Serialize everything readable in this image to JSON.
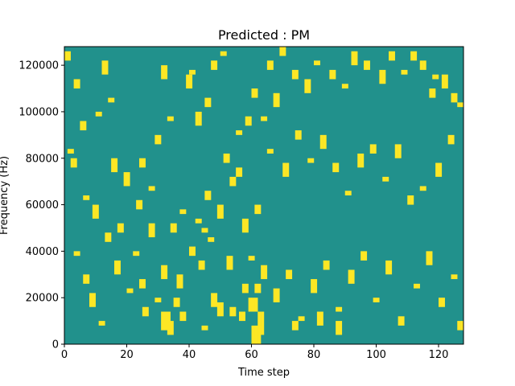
{
  "chart_data": {
    "type": "heatmap",
    "title": "Predicted : PM",
    "xlabel": "Time step",
    "ylabel": "Frequency (Hz)",
    "xlim": [
      0,
      128
    ],
    "ylim": [
      0,
      128000
    ],
    "grid": false,
    "legend": "none",
    "x_ticks": [
      0,
      20,
      40,
      60,
      80,
      100,
      120
    ],
    "y_ticks": [
      0,
      20000,
      40000,
      60000,
      80000,
      100000,
      120000
    ],
    "colormap": "viridis",
    "colors": {
      "background": "#21918c",
      "high": "#fde725",
      "low": "#440154"
    },
    "n_time_steps": 128,
    "n_freq_bins": 64,
    "freq_bin_hz": 2000,
    "cells": [
      [
        62,
        2,
        5,
        1
      ],
      [
        63,
        2,
        5,
        1
      ],
      [
        53,
        6,
        2,
        1
      ],
      [
        54,
        6,
        2,
        1
      ],
      [
        35,
        8,
        2,
        1
      ],
      [
        36,
        8,
        2,
        1
      ],
      [
        36,
        12,
        3,
        1
      ],
      [
        37,
        12,
        3,
        1
      ],
      [
        31,
        14,
        3,
        1
      ],
      [
        32,
        14,
        3,
        1
      ],
      [
        43,
        16,
        2,
        1
      ],
      [
        44,
        16,
        2,
        1
      ],
      [
        40,
        19,
        2,
        1
      ],
      [
        41,
        19,
        2,
        1
      ],
      [
        46,
        22,
        1,
        1
      ],
      [
        47,
        22,
        1,
        1
      ],
      [
        44,
        24,
        1,
        1
      ],
      [
        45,
        24,
        1,
        1
      ],
      [
        42,
        26,
        1,
        1
      ],
      [
        43,
        26,
        1,
        1
      ],
      [
        49,
        27,
        3,
        1
      ],
      [
        50,
        27,
        3,
        1
      ],
      [
        45,
        31,
        2,
        1
      ],
      [
        46,
        31,
        2,
        1
      ],
      [
        53,
        34,
        2,
        1
      ],
      [
        54,
        34,
        2,
        1
      ],
      [
        55,
        36,
        2,
        1
      ],
      [
        56,
        36,
        2,
        1
      ],
      [
        51,
        39,
        2,
        1
      ],
      [
        52,
        39,
        2,
        1
      ],
      [
        1,
        41,
        1,
        1
      ],
      [
        2,
        41,
        1,
        1
      ],
      [
        5,
        46,
        2,
        1
      ],
      [
        6,
        46,
        2,
        1
      ],
      [
        10,
        49,
        1,
        1
      ],
      [
        11,
        49,
        1,
        1
      ],
      [
        14,
        52,
        1,
        1
      ],
      [
        15,
        52,
        1,
        1
      ],
      [
        3,
        55,
        2,
        1
      ],
      [
        4,
        55,
        2,
        1
      ],
      [
        12,
        58,
        3,
        1
      ],
      [
        13,
        58,
        3,
        1
      ],
      [
        0,
        61,
        2,
        1
      ],
      [
        1,
        61,
        2,
        1
      ],
      [
        31,
        57,
        3,
        1
      ],
      [
        32,
        57,
        3,
        1
      ],
      [
        39,
        55,
        3,
        1
      ],
      [
        40,
        55,
        3,
        1
      ],
      [
        40,
        58,
        1,
        1
      ],
      [
        41,
        58,
        1,
        1
      ],
      [
        47,
        59,
        2,
        1
      ],
      [
        48,
        59,
        2,
        1
      ],
      [
        50,
        62,
        1,
        1
      ],
      [
        51,
        62,
        1,
        1
      ],
      [
        55,
        45,
        1,
        1
      ],
      [
        56,
        45,
        1,
        1
      ],
      [
        58,
        47,
        2,
        1
      ],
      [
        59,
        47,
        2,
        1
      ],
      [
        65,
        59,
        2,
        1
      ],
      [
        66,
        59,
        2,
        1
      ],
      [
        69,
        62,
        2,
        1
      ],
      [
        70,
        62,
        2,
        1
      ],
      [
        73,
        57,
        2,
        1
      ],
      [
        74,
        57,
        2,
        1
      ],
      [
        77,
        54,
        3,
        1
      ],
      [
        78,
        54,
        3,
        1
      ],
      [
        80,
        60,
        1,
        1
      ],
      [
        81,
        60,
        1,
        1
      ],
      [
        85,
        57,
        2,
        1
      ],
      [
        86,
        57,
        2,
        1
      ],
      [
        89,
        55,
        1,
        1
      ],
      [
        90,
        55,
        1,
        1
      ],
      [
        92,
        60,
        3,
        1
      ],
      [
        93,
        60,
        3,
        1
      ],
      [
        96,
        59,
        2,
        1
      ],
      [
        97,
        59,
        2,
        1
      ],
      [
        101,
        56,
        3,
        1
      ],
      [
        102,
        56,
        3,
        1
      ],
      [
        104,
        61,
        2,
        1
      ],
      [
        105,
        61,
        2,
        1
      ],
      [
        108,
        58,
        1,
        1
      ],
      [
        109,
        58,
        1,
        1
      ],
      [
        111,
        61,
        2,
        1
      ],
      [
        112,
        61,
        2,
        1
      ],
      [
        114,
        59,
        2,
        1
      ],
      [
        115,
        59,
        2,
        1
      ],
      [
        118,
        57,
        1,
        1
      ],
      [
        119,
        57,
        1,
        1
      ],
      [
        121,
        55,
        3,
        1
      ],
      [
        122,
        55,
        3,
        1
      ],
      [
        124,
        52,
        2,
        1
      ],
      [
        125,
        52,
        2,
        1
      ],
      [
        117,
        53,
        2,
        1
      ],
      [
        118,
        53,
        2,
        1
      ],
      [
        126,
        51,
        1,
        1
      ],
      [
        127,
        51,
        1,
        1
      ],
      [
        65,
        41,
        1,
        1
      ],
      [
        66,
        41,
        1,
        1
      ],
      [
        70,
        36,
        3,
        1
      ],
      [
        71,
        36,
        3,
        1
      ],
      [
        74,
        44,
        2,
        1
      ],
      [
        75,
        44,
        2,
        1
      ],
      [
        78,
        39,
        1,
        1
      ],
      [
        79,
        39,
        1,
        1
      ],
      [
        82,
        42,
        3,
        1
      ],
      [
        83,
        42,
        3,
        1
      ],
      [
        86,
        37,
        2,
        1
      ],
      [
        87,
        37,
        2,
        1
      ],
      [
        90,
        32,
        1,
        1
      ],
      [
        91,
        32,
        1,
        1
      ],
      [
        94,
        38,
        3,
        1
      ],
      [
        95,
        38,
        3,
        1
      ],
      [
        98,
        41,
        2,
        1
      ],
      [
        99,
        41,
        2,
        1
      ],
      [
        102,
        35,
        1,
        1
      ],
      [
        103,
        35,
        1,
        1
      ],
      [
        106,
        40,
        3,
        1
      ],
      [
        107,
        40,
        3,
        1
      ],
      [
        110,
        30,
        2,
        1
      ],
      [
        111,
        30,
        2,
        1
      ],
      [
        114,
        33,
        1,
        1
      ],
      [
        115,
        33,
        1,
        1
      ],
      [
        119,
        36,
        3,
        1
      ],
      [
        120,
        36,
        3,
        1
      ],
      [
        123,
        43,
        2,
        1
      ],
      [
        124,
        43,
        2,
        1
      ],
      [
        19,
        34,
        3,
        1
      ],
      [
        20,
        34,
        3,
        1
      ],
      [
        23,
        29,
        2,
        1
      ],
      [
        24,
        29,
        2,
        1
      ],
      [
        27,
        23,
        3,
        1
      ],
      [
        28,
        23,
        3,
        1
      ],
      [
        22,
        19,
        1,
        1
      ],
      [
        23,
        19,
        1,
        1
      ],
      [
        17,
        24,
        2,
        1
      ],
      [
        18,
        24,
        2,
        1
      ],
      [
        16,
        15,
        3,
        1
      ],
      [
        17,
        15,
        3,
        1
      ],
      [
        20,
        11,
        1,
        1
      ],
      [
        21,
        11,
        1,
        1
      ],
      [
        25,
        6,
        2,
        1
      ],
      [
        26,
        6,
        2,
        1
      ],
      [
        8,
        8,
        3,
        1
      ],
      [
        9,
        8,
        3,
        1
      ],
      [
        11,
        4,
        1,
        1
      ],
      [
        12,
        4,
        1,
        1
      ],
      [
        6,
        13,
        2,
        1
      ],
      [
        7,
        13,
        2,
        1
      ],
      [
        3,
        19,
        1,
        1
      ],
      [
        4,
        19,
        1,
        1
      ],
      [
        9,
        27,
        3,
        1
      ],
      [
        10,
        27,
        3,
        1
      ],
      [
        13,
        22,
        2,
        1
      ],
      [
        14,
        22,
        2,
        1
      ],
      [
        6,
        31,
        1,
        1
      ],
      [
        7,
        31,
        1,
        1
      ],
      [
        2,
        38,
        2,
        1
      ],
      [
        3,
        38,
        2,
        1
      ],
      [
        15,
        37,
        3,
        1
      ],
      [
        16,
        37,
        3,
        1
      ],
      [
        24,
        38,
        2,
        1
      ],
      [
        25,
        38,
        2,
        1
      ],
      [
        27,
        33,
        1,
        1
      ],
      [
        28,
        33,
        1,
        1
      ],
      [
        67,
        9,
        3,
        1
      ],
      [
        68,
        9,
        3,
        1
      ],
      [
        71,
        14,
        2,
        1
      ],
      [
        72,
        14,
        2,
        1
      ],
      [
        75,
        5,
        1,
        1
      ],
      [
        76,
        5,
        1,
        1
      ],
      [
        79,
        11,
        3,
        1
      ],
      [
        80,
        11,
        3,
        1
      ],
      [
        83,
        16,
        2,
        1
      ],
      [
        84,
        16,
        2,
        1
      ],
      [
        87,
        7,
        1,
        1
      ],
      [
        88,
        7,
        1,
        1
      ],
      [
        91,
        13,
        3,
        1
      ],
      [
        92,
        13,
        3,
        1
      ],
      [
        95,
        18,
        2,
        1
      ],
      [
        96,
        18,
        2,
        1
      ],
      [
        99,
        9,
        1,
        1
      ],
      [
        100,
        9,
        1,
        1
      ],
      [
        103,
        15,
        3,
        1
      ],
      [
        104,
        15,
        3,
        1
      ],
      [
        107,
        4,
        2,
        1
      ],
      [
        108,
        4,
        2,
        1
      ],
      [
        112,
        12,
        1,
        1
      ],
      [
        113,
        12,
        1,
        1
      ],
      [
        116,
        17,
        3,
        1
      ],
      [
        117,
        17,
        3,
        1
      ],
      [
        120,
        8,
        2,
        1
      ],
      [
        121,
        8,
        2,
        1
      ],
      [
        124,
        14,
        1,
        1
      ],
      [
        125,
        14,
        1,
        1
      ],
      [
        126,
        3,
        2,
        1
      ],
      [
        127,
        3,
        2,
        1
      ],
      [
        33,
        2,
        3,
        1
      ],
      [
        34,
        2,
        3,
        1
      ],
      [
        37,
        5,
        2,
        1
      ],
      [
        38,
        5,
        2,
        1
      ],
      [
        57,
        11,
        2,
        1
      ],
      [
        58,
        11,
        2,
        1
      ],
      [
        52,
        16,
        3,
        1
      ],
      [
        53,
        16,
        3,
        1
      ],
      [
        59,
        18,
        1,
        1
      ],
      [
        60,
        18,
        1,
        1
      ],
      [
        47,
        8,
        3,
        1
      ],
      [
        48,
        8,
        3,
        1
      ],
      [
        34,
        24,
        2,
        1
      ],
      [
        35,
        24,
        2,
        1
      ],
      [
        37,
        28,
        1,
        1
      ],
      [
        38,
        28,
        1,
        1
      ],
      [
        57,
        24,
        3,
        1
      ],
      [
        58,
        24,
        3,
        1
      ],
      [
        61,
        28,
        2,
        1
      ],
      [
        62,
        28,
        2,
        1
      ],
      [
        29,
        43,
        2,
        1
      ],
      [
        30,
        43,
        2,
        1
      ],
      [
        33,
        48,
        1,
        1
      ],
      [
        34,
        48,
        1,
        1
      ],
      [
        42,
        47,
        3,
        1
      ],
      [
        43,
        47,
        3,
        1
      ],
      [
        45,
        51,
        2,
        1
      ],
      [
        46,
        51,
        2,
        1
      ],
      [
        63,
        48,
        1,
        1
      ],
      [
        64,
        48,
        1,
        1
      ],
      [
        60,
        53,
        2,
        1
      ],
      [
        61,
        53,
        2,
        1
      ],
      [
        67,
        51,
        3,
        1
      ],
      [
        68,
        51,
        3,
        1
      ],
      [
        44,
        3,
        1,
        1
      ],
      [
        45,
        3,
        1,
        1
      ],
      [
        24,
        12,
        2,
        1
      ],
      [
        25,
        12,
        2,
        1
      ],
      [
        29,
        9,
        1,
        1
      ],
      [
        30,
        9,
        1,
        1
      ],
      [
        60,
        0,
        4,
        1
      ],
      [
        61,
        0,
        4,
        1
      ],
      [
        62,
        0,
        4,
        1
      ],
      [
        31,
        3,
        4,
        1
      ],
      [
        32,
        3,
        4,
        1
      ],
      [
        33,
        3,
        4,
        1
      ],
      [
        81,
        4,
        3,
        1
      ],
      [
        82,
        4,
        3,
        1
      ],
      [
        73,
        3,
        2,
        1
      ],
      [
        74,
        3,
        2,
        1
      ],
      [
        59,
        7,
        3,
        1
      ],
      [
        60,
        7,
        3,
        1
      ],
      [
        61,
        7,
        3,
        1
      ],
      [
        61,
        11,
        2,
        1
      ],
      [
        62,
        11,
        2,
        1
      ],
      [
        49,
        6,
        3,
        1
      ],
      [
        50,
        6,
        3,
        1
      ],
      [
        56,
        5,
        2,
        1
      ],
      [
        57,
        5,
        2,
        1
      ],
      [
        63,
        14,
        3,
        1
      ],
      [
        64,
        14,
        3,
        1
      ],
      [
        87,
        2,
        3,
        1
      ],
      [
        88,
        2,
        3,
        1
      ]
    ]
  }
}
